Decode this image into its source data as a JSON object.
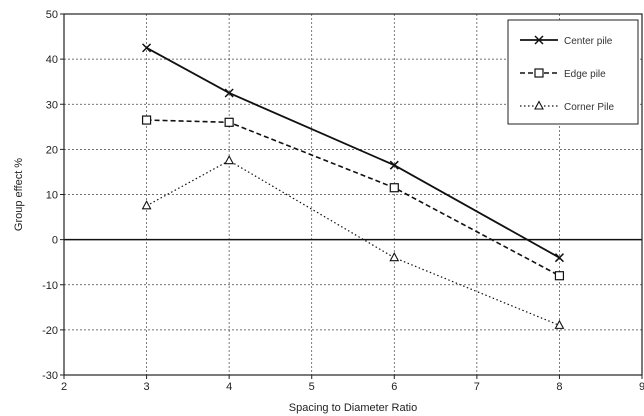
{
  "chart_data": {
    "type": "line",
    "title": "",
    "xlabel": "Spacing to Diameter Ratio",
    "ylabel": "Group effect %",
    "xlim": [
      2,
      9
    ],
    "ylim": [
      -30,
      50
    ],
    "xticks": [
      2,
      3,
      4,
      5,
      6,
      7,
      8,
      9
    ],
    "yticks": [
      -30,
      -20,
      -10,
      0,
      10,
      20,
      30,
      40,
      50
    ],
    "grid": true,
    "legend_position": "top-right",
    "x": [
      3,
      4,
      6,
      8
    ],
    "series": [
      {
        "name": "Center pile",
        "marker": "x",
        "line": "solid",
        "color": "#111111",
        "values": [
          42.5,
          32.5,
          16.5,
          -4
        ]
      },
      {
        "name": "Edge pile",
        "marker": "square",
        "line": "dashed",
        "color": "#111111",
        "values": [
          26.5,
          26,
          11.5,
          -8
        ]
      },
      {
        "name": "Corner Pile",
        "marker": "triangle",
        "line": "dotted",
        "color": "#111111",
        "values": [
          7.5,
          17.5,
          -4,
          -19
        ]
      }
    ]
  }
}
